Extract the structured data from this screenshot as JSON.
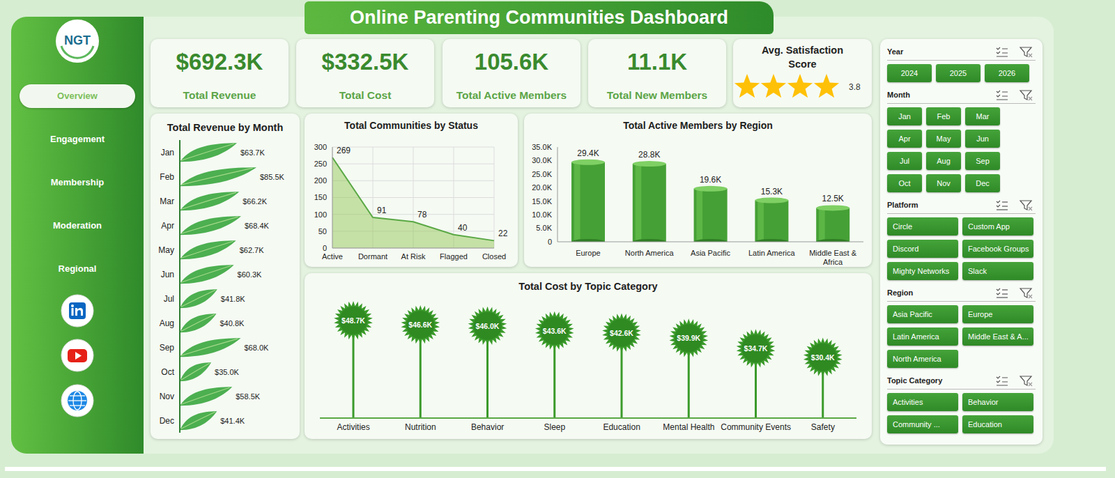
{
  "header": {
    "title": "Online Parenting Communities Dashboard",
    "logo": "NGT"
  },
  "nav": {
    "items": [
      "Overview",
      "Engagement",
      "Membership",
      "Moderation",
      "Regional"
    ],
    "active": "Overview"
  },
  "kpis": [
    {
      "value": "$692.3K",
      "label": "Total Revenue"
    },
    {
      "value": "$332.5K",
      "label": "Total Cost"
    },
    {
      "value": "105.6K",
      "label": "Total Active Members"
    },
    {
      "value": "11.1K",
      "label": "Total New Members"
    }
  ],
  "satisfaction": {
    "label": "Avg. Satisfaction Score",
    "value": 3.8,
    "stars": 4
  },
  "chart_data": [
    {
      "type": "bar",
      "title": "Total Revenue by Month",
      "orientation": "horizontal",
      "categories": [
        "Jan",
        "Feb",
        "Mar",
        "Apr",
        "May",
        "Jun",
        "Jul",
        "Aug",
        "Sep",
        "Oct",
        "Nov",
        "Dec"
      ],
      "values": [
        63.7,
        85.5,
        66.2,
        68.4,
        62.7,
        60.3,
        41.8,
        40.8,
        68.0,
        35.0,
        58.5,
        41.4
      ],
      "value_labels": [
        "$63.7K",
        "$85.5K",
        "$66.2K",
        "$68.4K",
        "$62.7K",
        "$60.3K",
        "$41.8K",
        "$40.8K",
        "$68.0K",
        "$35.0K",
        "$58.5K",
        "$41.4K"
      ],
      "color": "#4caf50",
      "data_labels": true,
      "tick_labels": "y"
    },
    {
      "type": "area",
      "title": "Total Communities by Status",
      "categories": [
        "Active",
        "Dormant",
        "At Risk",
        "Flagged",
        "Closed"
      ],
      "values": [
        269,
        91,
        78,
        40,
        22
      ],
      "color": "#5aa845",
      "ylim": [
        0,
        300
      ],
      "yticks": [
        0,
        50,
        100,
        150,
        200,
        250,
        300
      ],
      "grid": true,
      "data_labels": true
    },
    {
      "type": "bar",
      "title": "Total Active Members by Region",
      "categories": [
        "Europe",
        "North America",
        "Asia Pacific",
        "Latin America",
        "Middle East & Africa"
      ],
      "values": [
        29.4,
        28.8,
        19.6,
        15.3,
        12.5
      ],
      "value_labels": [
        "29.4K",
        "28.8K",
        "19.6K",
        "15.3K",
        "12.5K"
      ],
      "color": "#45a035",
      "ylim": [
        0,
        35
      ],
      "yticks": [
        0,
        {
          "value": 5,
          "label": "5.0K"
        },
        {
          "value": 10,
          "label": "10.0K"
        },
        {
          "value": 15,
          "label": "15.0K"
        },
        {
          "value": 20,
          "label": "20.0K"
        },
        {
          "value": 25,
          "label": "25.0K"
        },
        {
          "value": 30,
          "label": "30.0K"
        },
        {
          "value": 35,
          "label": "35.0K"
        }
      ],
      "grid": false,
      "data_labels": true
    },
    {
      "type": "lollipop",
      "title": "Total Cost by Topic Category",
      "categories": [
        "Activities",
        "Nutrition",
        "Behavior",
        "Sleep",
        "Education",
        "Mental Health",
        "Community Events",
        "Safety"
      ],
      "values": [
        48.7,
        46.6,
        46.0,
        43.6,
        42.6,
        39.9,
        34.7,
        30.4
      ],
      "value_labels": [
        "$48.7K",
        "$46.6K",
        "$46.0K",
        "$43.6K",
        "$42.6K",
        "$39.9K",
        "$34.7K",
        "$30.4K"
      ],
      "color": "#3a9a2a",
      "data_labels": true,
      "tick_labels": "x"
    }
  ],
  "slicers": [
    {
      "title": "Year",
      "items": [
        "2024",
        "2025",
        "2026"
      ]
    },
    {
      "title": "Month",
      "items": [
        "Jan",
        "Feb",
        "Mar",
        "Apr",
        "May",
        "Jun",
        "Jul",
        "Aug",
        "Sep",
        "Oct",
        "Nov",
        "Dec"
      ]
    },
    {
      "title": "Platform",
      "items": [
        "Circle",
        "Custom App",
        "Discord",
        "Facebook Groups",
        "Mighty Networks",
        "Slack"
      ]
    },
    {
      "title": "Region",
      "items": [
        "Asia Pacific",
        "Europe",
        "Latin America",
        "Middle East & A...",
        "North America"
      ]
    },
    {
      "title": "Topic Category",
      "items": [
        "Activities",
        "Behavior",
        "Community ...",
        "Education"
      ]
    }
  ]
}
